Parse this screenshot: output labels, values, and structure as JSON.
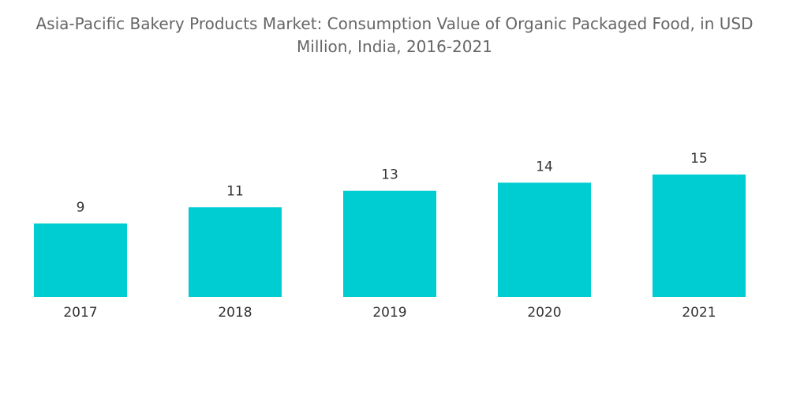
{
  "chart_data": {
    "type": "bar",
    "title": "Asia-Pacific Bakery Products Market: Consumption Value of Organic Packaged Food, in USD Million, India, 2016-2021",
    "categories": [
      "2017",
      "2018",
      "2019",
      "2020",
      "2021"
    ],
    "values": [
      9,
      11,
      13,
      14,
      15
    ],
    "color": "#00cdd2"
  }
}
